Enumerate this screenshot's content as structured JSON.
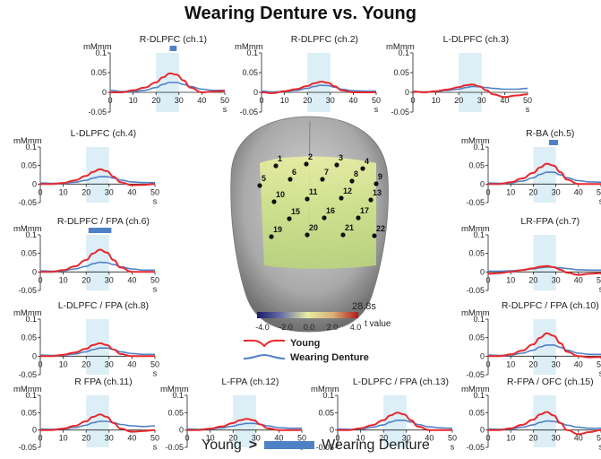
{
  "title": "Wearing Denture vs. Young",
  "colors": {
    "young": "#e8282d",
    "denture": "#4f81c7",
    "window": "#dceef6",
    "significance": "#4f81c7"
  },
  "footer": {
    "left": "Young",
    "symbol": ">",
    "right": "Wearing Denture"
  },
  "legend": {
    "young": "Young",
    "denture": "Wearing Denture"
  },
  "brain": {
    "time_label": "28.8s",
    "colorbar_ticks": [
      "-4.0",
      "-2.0",
      "0.0",
      "2.0",
      "4.0"
    ],
    "colorbar_label": "t value",
    "channel_numbers": [
      "1",
      "2",
      "3",
      "4",
      "5",
      "6",
      "7",
      "8",
      "9",
      "10",
      "11",
      "12",
      "13",
      "15",
      "16",
      "17",
      "19",
      "20",
      "21",
      "22"
    ]
  },
  "chart_data": [
    {
      "type": "line",
      "title": "R-DLPFC (ch.1)",
      "ylabel": "mMmm",
      "xlabel": "s",
      "ylim": [
        -0.05,
        0.1
      ],
      "xlim": [
        0,
        50
      ],
      "yticks": [
        "0.1",
        "0.05",
        "0",
        "-0.05"
      ],
      "xticks": [
        "0",
        "10",
        "20",
        "30",
        "40",
        "50"
      ],
      "window": [
        20,
        30
      ],
      "significant": [
        26,
        29
      ],
      "x": [
        0,
        5,
        10,
        15,
        20,
        23,
        26,
        29,
        32,
        35,
        40,
        45,
        50
      ],
      "series": [
        {
          "name": "Young",
          "values": [
            0,
            0,
            0.005,
            0.012,
            0.025,
            0.038,
            0.048,
            0.045,
            0.03,
            0.012,
            0.0,
            0.002,
            0.004
          ]
        },
        {
          "name": "Wearing Denture",
          "values": [
            0.005,
            0.002,
            0.002,
            0.005,
            0.012,
            0.02,
            0.025,
            0.025,
            0.02,
            0.015,
            0.008,
            0.005,
            0.005
          ]
        }
      ]
    },
    {
      "type": "line",
      "title": "R-DLPFC (ch.2)",
      "ylabel": "mMmm",
      "xlabel": "s",
      "ylim": [
        -0.05,
        0.1
      ],
      "xlim": [
        0,
        50
      ],
      "yticks": [
        "0.1",
        "0.05",
        "0",
        "-0.05"
      ],
      "xticks": [
        "0",
        "10",
        "20",
        "30",
        "40",
        "50"
      ],
      "window": [
        20,
        30
      ],
      "significant": [],
      "x": [
        0,
        5,
        10,
        15,
        20,
        23,
        26,
        29,
        32,
        35,
        40,
        45,
        50
      ],
      "series": [
        {
          "name": "Young",
          "values": [
            0,
            -0.002,
            0.003,
            0.008,
            0.016,
            0.023,
            0.027,
            0.024,
            0.015,
            0.005,
            0,
            0,
            0
          ]
        },
        {
          "name": "Wearing Denture",
          "values": [
            0.003,
            0.001,
            0.002,
            0.005,
            0.01,
            0.015,
            0.018,
            0.017,
            0.013,
            0.008,
            0.004,
            0.003,
            0.003
          ]
        }
      ]
    },
    {
      "type": "line",
      "title": "L-DLPFC (ch.3)",
      "ylabel": "mMmm",
      "xlabel": "s",
      "ylim": [
        -0.05,
        0.1
      ],
      "xlim": [
        0,
        50
      ],
      "yticks": [
        "0.1",
        "0.05",
        "0",
        "-0.05"
      ],
      "xticks": [
        "0",
        "10",
        "20",
        "30",
        "40",
        "50"
      ],
      "window": [
        20,
        30
      ],
      "significant": [],
      "x": [
        0,
        5,
        10,
        15,
        20,
        23,
        26,
        29,
        32,
        35,
        40,
        45,
        50
      ],
      "series": [
        {
          "name": "Young",
          "values": [
            0.002,
            0,
            0.003,
            0.007,
            0.013,
            0.018,
            0.02,
            0.015,
            0.005,
            -0.005,
            -0.012,
            -0.008,
            -0.005
          ]
        },
        {
          "name": "Wearing Denture",
          "values": [
            0.002,
            0.001,
            0.002,
            0.005,
            0.008,
            0.012,
            0.015,
            0.014,
            0.012,
            0.01,
            0.008,
            0.008,
            0.01
          ]
        }
      ]
    },
    {
      "type": "line",
      "title": "L-DLPFC (ch.4)",
      "ylabel": "mMmm",
      "xlabel": "s",
      "ylim": [
        -0.05,
        0.1
      ],
      "xlim": [
        0,
        50
      ],
      "yticks": [
        "0.1",
        "0.05",
        "0",
        "-0.05"
      ],
      "xticks": [
        "0",
        "10",
        "20",
        "30",
        "40",
        "50"
      ],
      "window": [
        20,
        30
      ],
      "significant": [],
      "x": [
        0,
        5,
        10,
        15,
        20,
        23,
        26,
        29,
        32,
        35,
        40,
        45,
        50
      ],
      "series": [
        {
          "name": "Young",
          "values": [
            0,
            0,
            0.003,
            0.01,
            0.022,
            0.033,
            0.04,
            0.035,
            0.02,
            0.005,
            -0.003,
            -0.002,
            0
          ]
        },
        {
          "name": "Wearing Denture",
          "values": [
            0.003,
            0.002,
            0.002,
            0.005,
            0.01,
            0.016,
            0.02,
            0.02,
            0.016,
            0.011,
            0.006,
            0.004,
            0.004
          ]
        }
      ]
    },
    {
      "type": "line",
      "title": "R-BA (ch.5)",
      "ylabel": "mMmm",
      "xlabel": "s",
      "ylim": [
        -0.05,
        0.1
      ],
      "xlim": [
        0,
        50
      ],
      "yticks": [
        "0.1",
        "0.05",
        "0",
        "-0.05"
      ],
      "xticks": [
        "0",
        "10",
        "20",
        "30",
        "40",
        "50"
      ],
      "window": [
        20,
        30
      ],
      "significant": [
        27,
        31
      ],
      "x": [
        0,
        5,
        10,
        15,
        20,
        23,
        26,
        29,
        32,
        35,
        40,
        45,
        50
      ],
      "series": [
        {
          "name": "Young",
          "values": [
            0,
            0,
            0.005,
            0.015,
            0.03,
            0.045,
            0.055,
            0.05,
            0.032,
            0.012,
            0,
            0,
            0
          ]
        },
        {
          "name": "Wearing Denture",
          "values": [
            0.003,
            0.002,
            0.003,
            0.008,
            0.017,
            0.026,
            0.032,
            0.032,
            0.025,
            0.017,
            0.009,
            0.006,
            0.005
          ]
        }
      ]
    },
    {
      "type": "line",
      "title": "R-DLPFC / FPA (ch.6)",
      "ylabel": "mMmm",
      "xlabel": "s",
      "ylim": [
        -0.05,
        0.1
      ],
      "xlim": [
        0,
        50
      ],
      "yticks": [
        "0.1",
        "0.05",
        "0",
        "-0.05"
      ],
      "xticks": [
        "0",
        "10",
        "20",
        "30",
        "40",
        "50"
      ],
      "window": [
        20,
        30
      ],
      "significant": [
        21,
        31
      ],
      "x": [
        0,
        5,
        10,
        15,
        20,
        23,
        26,
        29,
        32,
        35,
        40,
        45,
        50
      ],
      "series": [
        {
          "name": "Young",
          "values": [
            0,
            0,
            0.005,
            0.015,
            0.032,
            0.05,
            0.06,
            0.052,
            0.032,
            0.012,
            0,
            0,
            0
          ]
        },
        {
          "name": "Wearing Denture",
          "values": [
            0.003,
            0.002,
            0.003,
            0.008,
            0.015,
            0.022,
            0.026,
            0.025,
            0.02,
            0.014,
            0.008,
            0.005,
            0.005
          ]
        }
      ]
    },
    {
      "type": "line",
      "title": "LR-FPA (ch.7)",
      "ylabel": "mMmm",
      "xlabel": "s",
      "ylim": [
        -0.05,
        0.1
      ],
      "xlim": [
        0,
        50
      ],
      "yticks": [
        "0.1",
        "0.05",
        "0",
        "-0.05"
      ],
      "xticks": [
        "0",
        "10",
        "20",
        "30",
        "40",
        "50"
      ],
      "window": [
        20,
        30
      ],
      "significant": [],
      "x": [
        0,
        5,
        10,
        15,
        20,
        23,
        26,
        29,
        32,
        35,
        40,
        45,
        50
      ],
      "series": [
        {
          "name": "Young",
          "values": [
            -0.005,
            -0.003,
            0,
            0.005,
            0.01,
            0.014,
            0.016,
            0.013,
            0.006,
            -0.002,
            -0.008,
            -0.005,
            -0.003
          ]
        },
        {
          "name": "Wearing Denture",
          "values": [
            0.002,
            0.002,
            0.003,
            0.005,
            0.008,
            0.011,
            0.013,
            0.013,
            0.011,
            0.009,
            0.006,
            0.005,
            0.005
          ]
        }
      ]
    },
    {
      "type": "line",
      "title": "L-DLPFC / FPA (ch.8)",
      "ylabel": "mMmm",
      "xlabel": "s",
      "ylim": [
        -0.05,
        0.1
      ],
      "xlim": [
        0,
        50
      ],
      "yticks": [
        "0.1",
        "0.05",
        "0",
        "-0.05"
      ],
      "xticks": [
        "0",
        "10",
        "20",
        "30",
        "40",
        "50"
      ],
      "window": [
        20,
        30
      ],
      "significant": [],
      "x": [
        0,
        5,
        10,
        15,
        20,
        23,
        26,
        29,
        32,
        35,
        40,
        45,
        50
      ],
      "series": [
        {
          "name": "Young",
          "values": [
            0,
            0,
            0.004,
            0.01,
            0.02,
            0.03,
            0.035,
            0.03,
            0.018,
            0.006,
            0,
            0,
            0
          ]
        },
        {
          "name": "Wearing Denture",
          "values": [
            0.003,
            0.002,
            0.003,
            0.006,
            0.012,
            0.018,
            0.022,
            0.022,
            0.018,
            0.012,
            0.007,
            0.005,
            0.005
          ]
        }
      ]
    },
    {
      "type": "line",
      "title": "R-DLPFC / FPA (ch.10)",
      "ylabel": "mMmm",
      "xlabel": "s",
      "ylim": [
        -0.05,
        0.1
      ],
      "xlim": [
        0,
        50
      ],
      "yticks": [
        "0.1",
        "0.05",
        "0",
        "-0.05"
      ],
      "xticks": [
        "0",
        "10",
        "20",
        "30",
        "40",
        "50"
      ],
      "window": [
        20,
        30
      ],
      "significant": [],
      "x": [
        0,
        5,
        10,
        15,
        20,
        23,
        26,
        29,
        32,
        35,
        40,
        45,
        50
      ],
      "series": [
        {
          "name": "Young",
          "values": [
            0,
            0,
            0.005,
            0.015,
            0.032,
            0.05,
            0.062,
            0.055,
            0.035,
            0.012,
            0,
            -0.003,
            -0.002
          ]
        },
        {
          "name": "Wearing Denture",
          "values": [
            0.003,
            0.002,
            0.003,
            0.008,
            0.016,
            0.025,
            0.03,
            0.03,
            0.024,
            0.016,
            0.008,
            0.005,
            0.005
          ]
        }
      ]
    },
    {
      "type": "line",
      "title": "R FPA (ch.11)",
      "ylabel": "mMmm",
      "xlabel": "s",
      "ylim": [
        -0.05,
        0.1
      ],
      "xlim": [
        0,
        50
      ],
      "yticks": [
        "0.1",
        "0.05",
        "0",
        "-0.05"
      ],
      "xticks": [
        "0",
        "10",
        "20",
        "30",
        "40",
        "50"
      ],
      "window": [
        20,
        30
      ],
      "significant": [],
      "x": [
        0,
        5,
        10,
        15,
        20,
        23,
        26,
        29,
        32,
        35,
        40,
        45,
        50
      ],
      "series": [
        {
          "name": "Young",
          "values": [
            0,
            0,
            0.004,
            0.012,
            0.025,
            0.038,
            0.045,
            0.038,
            0.02,
            0.004,
            -0.005,
            -0.003,
            0
          ]
        },
        {
          "name": "Wearing Denture",
          "values": [
            0.003,
            0.002,
            0.003,
            0.007,
            0.014,
            0.021,
            0.025,
            0.025,
            0.021,
            0.016,
            0.012,
            0.01,
            0.012
          ]
        }
      ]
    },
    {
      "type": "line",
      "title": "L-FPA (ch.12)",
      "ylabel": "mMmm",
      "xlabel": "s",
      "ylim": [
        -0.05,
        0.1
      ],
      "xlim": [
        0,
        50
      ],
      "yticks": [
        "0.1",
        "0.05",
        "0",
        "-0.05"
      ],
      "xticks": [
        "0",
        "10",
        "20",
        "30",
        "40",
        "50"
      ],
      "window": [
        20,
        30
      ],
      "significant": [],
      "x": [
        0,
        5,
        10,
        15,
        20,
        23,
        26,
        29,
        32,
        35,
        40,
        45,
        50
      ],
      "series": [
        {
          "name": "Young",
          "values": [
            0,
            0,
            0.004,
            0.01,
            0.02,
            0.028,
            0.032,
            0.028,
            0.016,
            0.005,
            0,
            0,
            0
          ]
        },
        {
          "name": "Wearing Denture",
          "values": [
            0.003,
            0.002,
            0.003,
            0.006,
            0.011,
            0.016,
            0.019,
            0.019,
            0.016,
            0.012,
            0.007,
            0.005,
            0.005
          ]
        }
      ]
    },
    {
      "type": "line",
      "title": "L-DLPFC / FPA (ch.13)",
      "ylabel": "mMmm",
      "xlabel": "s",
      "ylim": [
        -0.05,
        0.1
      ],
      "xlim": [
        0,
        50
      ],
      "yticks": [
        "0.1",
        "0.05",
        "0",
        "-0.05"
      ],
      "xticks": [
        "0",
        "10",
        "20",
        "30",
        "40",
        "50"
      ],
      "window": [
        20,
        30
      ],
      "significant": [],
      "x": [
        0,
        5,
        10,
        15,
        20,
        23,
        26,
        29,
        32,
        35,
        40,
        45,
        50
      ],
      "series": [
        {
          "name": "Young",
          "values": [
            0,
            0,
            0.005,
            0.014,
            0.028,
            0.042,
            0.05,
            0.045,
            0.028,
            0.01,
            0,
            0,
            0
          ]
        },
        {
          "name": "Wearing Denture",
          "values": [
            0.003,
            0.002,
            0.003,
            0.008,
            0.015,
            0.023,
            0.028,
            0.028,
            0.023,
            0.016,
            0.009,
            0.006,
            0.005
          ]
        }
      ]
    },
    {
      "type": "line",
      "title": "R-FPA / OFC (ch.15)",
      "ylabel": "mMmm",
      "xlabel": "s",
      "ylim": [
        -0.05,
        0.1
      ],
      "xlim": [
        0,
        50
      ],
      "yticks": [
        "0.1",
        "0.05",
        "0",
        "-0.05"
      ],
      "xticks": [
        "0",
        "10",
        "20",
        "30",
        "40",
        "50"
      ],
      "window": [
        20,
        30
      ],
      "significant": [],
      "x": [
        0,
        5,
        10,
        15,
        20,
        23,
        26,
        29,
        32,
        35,
        40,
        45,
        50
      ],
      "series": [
        {
          "name": "Young",
          "values": [
            0,
            0,
            0.005,
            0.015,
            0.03,
            0.045,
            0.052,
            0.042,
            0.02,
            0,
            -0.012,
            -0.006,
            0
          ]
        },
        {
          "name": "Wearing Denture",
          "values": [
            0.003,
            0.002,
            0.003,
            0.008,
            0.015,
            0.022,
            0.026,
            0.025,
            0.02,
            0.014,
            0.008,
            0.005,
            0.005
          ]
        }
      ]
    }
  ]
}
